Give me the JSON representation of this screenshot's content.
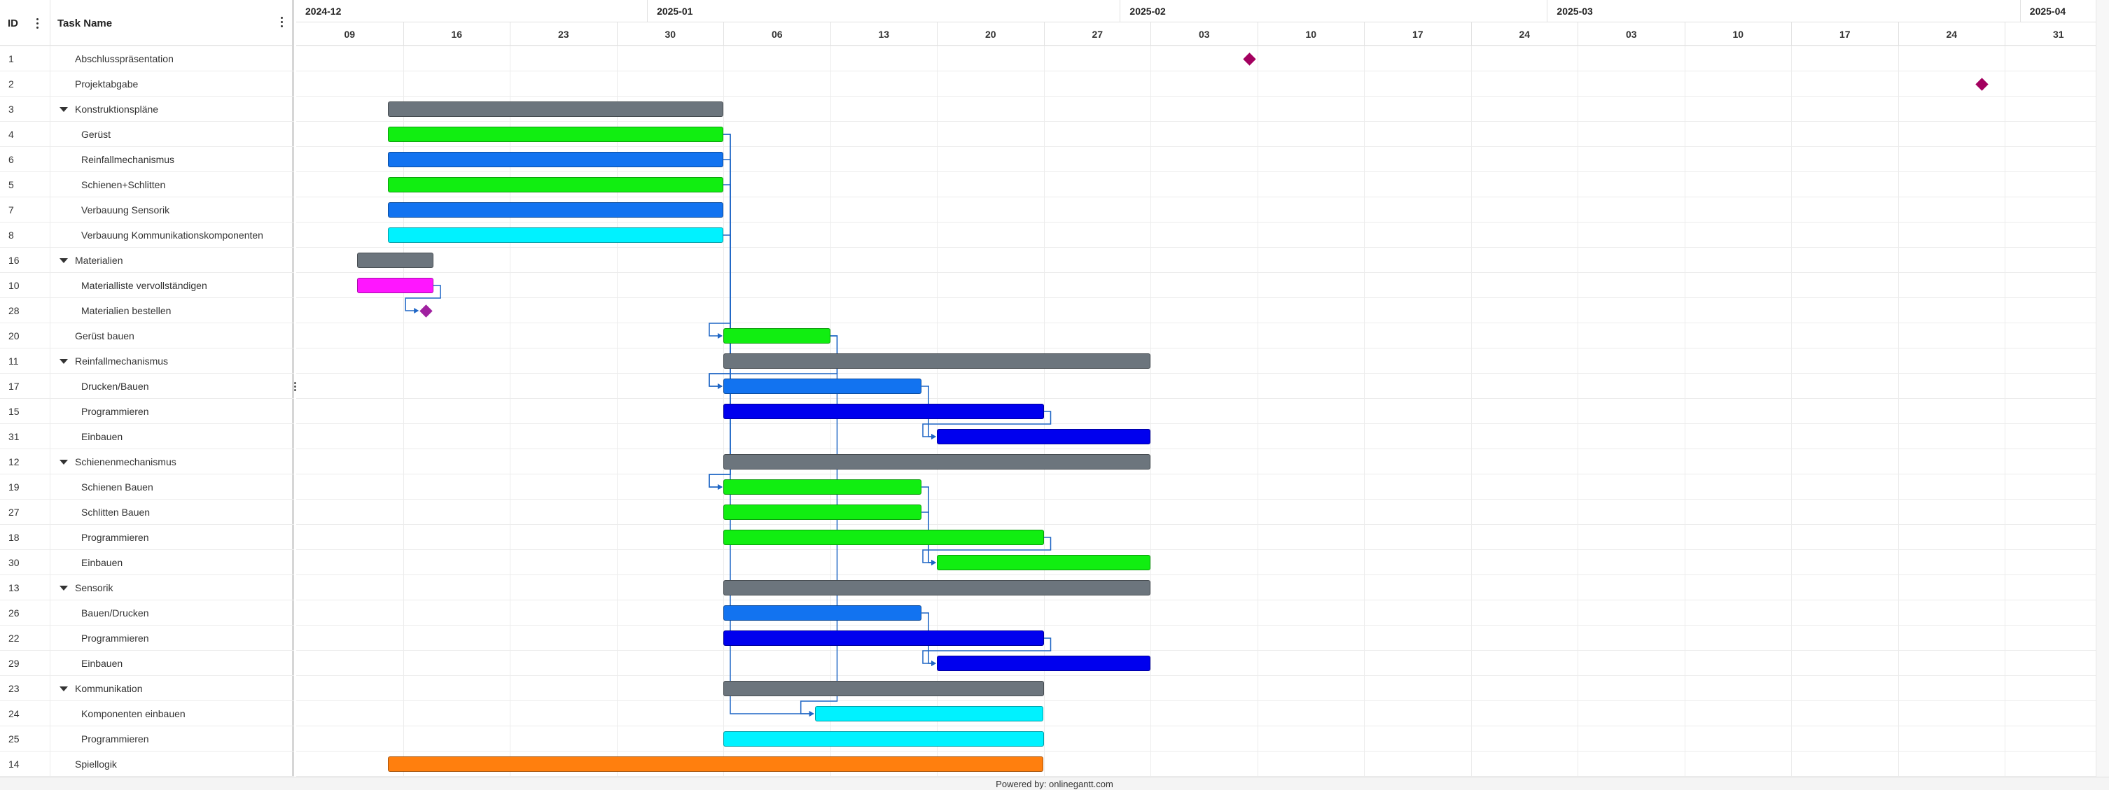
{
  "grid": {
    "id_header": "ID",
    "name_header": "Task Name"
  },
  "tasks": [
    {
      "id": "1",
      "name": "Abschlusspräsentation",
      "level": 1,
      "type": "milestone",
      "date": "2025-02-09",
      "color": "#a3005f"
    },
    {
      "id": "2",
      "name": "Projektabgabe",
      "level": 1,
      "type": "milestone",
      "date": "2025-03-29",
      "color": "#a3005f"
    },
    {
      "id": "3",
      "name": "Konstruktionspläne",
      "level": 0,
      "type": "group",
      "start": "2024-12-15",
      "end": "2025-01-05",
      "color": "#6c757d"
    },
    {
      "id": "4",
      "name": "Gerüst",
      "level": 2,
      "type": "task",
      "start": "2024-12-15",
      "end": "2025-01-05",
      "color": "#11ee11"
    },
    {
      "id": "6",
      "name": "Reinfallmechanismus",
      "level": 2,
      "type": "task",
      "start": "2024-12-15",
      "end": "2025-01-05",
      "color": "#1273f0"
    },
    {
      "id": "5",
      "name": "Schienen+Schlitten",
      "level": 2,
      "type": "task",
      "start": "2024-12-15",
      "end": "2025-01-05",
      "color": "#11ee11"
    },
    {
      "id": "7",
      "name": "Verbauung Sensorik",
      "level": 2,
      "type": "task",
      "start": "2024-12-15",
      "end": "2025-01-05",
      "color": "#1273f0"
    },
    {
      "id": "8",
      "name": "Verbauung Kommunikationskomponenten",
      "level": 2,
      "type": "task",
      "start": "2024-12-15",
      "end": "2025-01-05",
      "color": "#00f2ff"
    },
    {
      "id": "16",
      "name": "Materialien",
      "level": 0,
      "type": "group",
      "start": "2024-12-13",
      "end": "2024-12-17",
      "color": "#6c757d"
    },
    {
      "id": "10",
      "name": "Materialliste vervollständigen",
      "level": 2,
      "type": "task",
      "start": "2024-12-13",
      "end": "2024-12-17",
      "color": "#ff16ff"
    },
    {
      "id": "28",
      "name": "Materialien bestellen",
      "level": 2,
      "type": "milestone",
      "date": "2024-12-17",
      "color": "#a020a0"
    },
    {
      "id": "20",
      "name": "Gerüst bauen",
      "level": 1,
      "type": "task",
      "start": "2025-01-06",
      "end": "2025-01-12",
      "color": "#11ee11"
    },
    {
      "id": "11",
      "name": "Reinfallmechanismus",
      "level": 0,
      "type": "group",
      "start": "2025-01-06",
      "end": "2025-02-02",
      "color": "#6c757d"
    },
    {
      "id": "17",
      "name": "Drucken/Bauen",
      "level": 2,
      "type": "task",
      "start": "2025-01-06",
      "end": "2025-01-18",
      "color": "#1273f0"
    },
    {
      "id": "15",
      "name": "Programmieren",
      "level": 2,
      "type": "task",
      "start": "2025-01-06",
      "end": "2025-01-26",
      "color": "#0000ee"
    },
    {
      "id": "31",
      "name": "Einbauen",
      "level": 2,
      "type": "task",
      "start": "2025-01-20",
      "end": "2025-02-02",
      "color": "#0000ee"
    },
    {
      "id": "12",
      "name": "Schienenmechanismus",
      "level": 0,
      "type": "group",
      "start": "2025-01-06",
      "end": "2025-02-02",
      "color": "#6c757d"
    },
    {
      "id": "19",
      "name": "Schienen Bauen",
      "level": 2,
      "type": "task",
      "start": "2025-01-06",
      "end": "2025-01-18",
      "color": "#11ee11"
    },
    {
      "id": "27",
      "name": "Schlitten Bauen",
      "level": 2,
      "type": "task",
      "start": "2025-01-06",
      "end": "2025-01-18",
      "color": "#11ee11"
    },
    {
      "id": "18",
      "name": "Programmieren",
      "level": 2,
      "type": "task",
      "start": "2025-01-06",
      "end": "2025-01-26",
      "color": "#11ee11"
    },
    {
      "id": "30",
      "name": "Einbauen",
      "level": 2,
      "type": "task",
      "start": "2025-01-20",
      "end": "2025-02-02",
      "color": "#11ee11"
    },
    {
      "id": "13",
      "name": "Sensorik",
      "level": 0,
      "type": "group",
      "start": "2025-01-06",
      "end": "2025-02-02",
      "color": "#6c757d"
    },
    {
      "id": "26",
      "name": "Bauen/Drucken",
      "level": 2,
      "type": "task",
      "start": "2025-01-06",
      "end": "2025-01-18",
      "color": "#1273f0"
    },
    {
      "id": "22",
      "name": "Programmieren",
      "level": 2,
      "type": "task",
      "start": "2025-01-06",
      "end": "2025-01-26",
      "color": "#0000ee"
    },
    {
      "id": "29",
      "name": "Einbauen",
      "level": 2,
      "type": "task",
      "start": "2025-01-20",
      "end": "2025-02-02",
      "color": "#0000ee"
    },
    {
      "id": "23",
      "name": "Kommunikation",
      "level": 0,
      "type": "group",
      "start": "2025-01-06",
      "end": "2025-01-26",
      "color": "#6c757d"
    },
    {
      "id": "24",
      "name": "Komponenten einbauen",
      "level": 2,
      "type": "task",
      "start": "2025-01-12",
      "end": "2025-01-26",
      "color": "#00f2ff"
    },
    {
      "id": "25",
      "name": "Programmieren",
      "level": 2,
      "type": "task",
      "start": "2025-01-06",
      "end": "2025-01-26",
      "color": "#00f2ff"
    },
    {
      "id": "14",
      "name": "Spiellogik",
      "level": 1,
      "type": "task",
      "start": "2024-12-15",
      "end": "2025-01-26",
      "color": "#ff7f0e"
    }
  ],
  "links": [
    [
      "4",
      "20"
    ],
    [
      "4",
      "19"
    ],
    [
      "8",
      "24"
    ],
    [
      "10",
      "28"
    ],
    [
      "20",
      "24"
    ],
    [
      "20",
      "17"
    ],
    [
      "17",
      "31"
    ],
    [
      "15",
      "31"
    ],
    [
      "19",
      "30"
    ],
    [
      "27",
      "30"
    ],
    [
      "18",
      "30"
    ],
    [
      "26",
      "29"
    ],
    [
      "22",
      "29"
    ],
    [
      "6",
      "17"
    ],
    [
      "5",
      "19"
    ]
  ],
  "scale": {
    "months": [
      {
        "label": "2024-12",
        "start": "2024-12-07"
      },
      {
        "label": "2025-01",
        "start": "2025-01-01"
      },
      {
        "label": "2025-02",
        "start": "2025-02-01"
      },
      {
        "label": "2025-03",
        "start": "2025-03-01"
      },
      {
        "label": "2025-04",
        "start": "2025-04-01"
      }
    ],
    "weeks": [
      "09",
      "16",
      "23",
      "30",
      "06",
      "13",
      "20",
      "27",
      "03",
      "10",
      "17",
      "24",
      "03",
      "10",
      "17",
      "24",
      "31"
    ],
    "first_week": "2024-12-09",
    "range_start": "2024-12-09",
    "range_end": "2025-04-06"
  },
  "footer": {
    "text": "Powered by: onlinegantt.com"
  }
}
